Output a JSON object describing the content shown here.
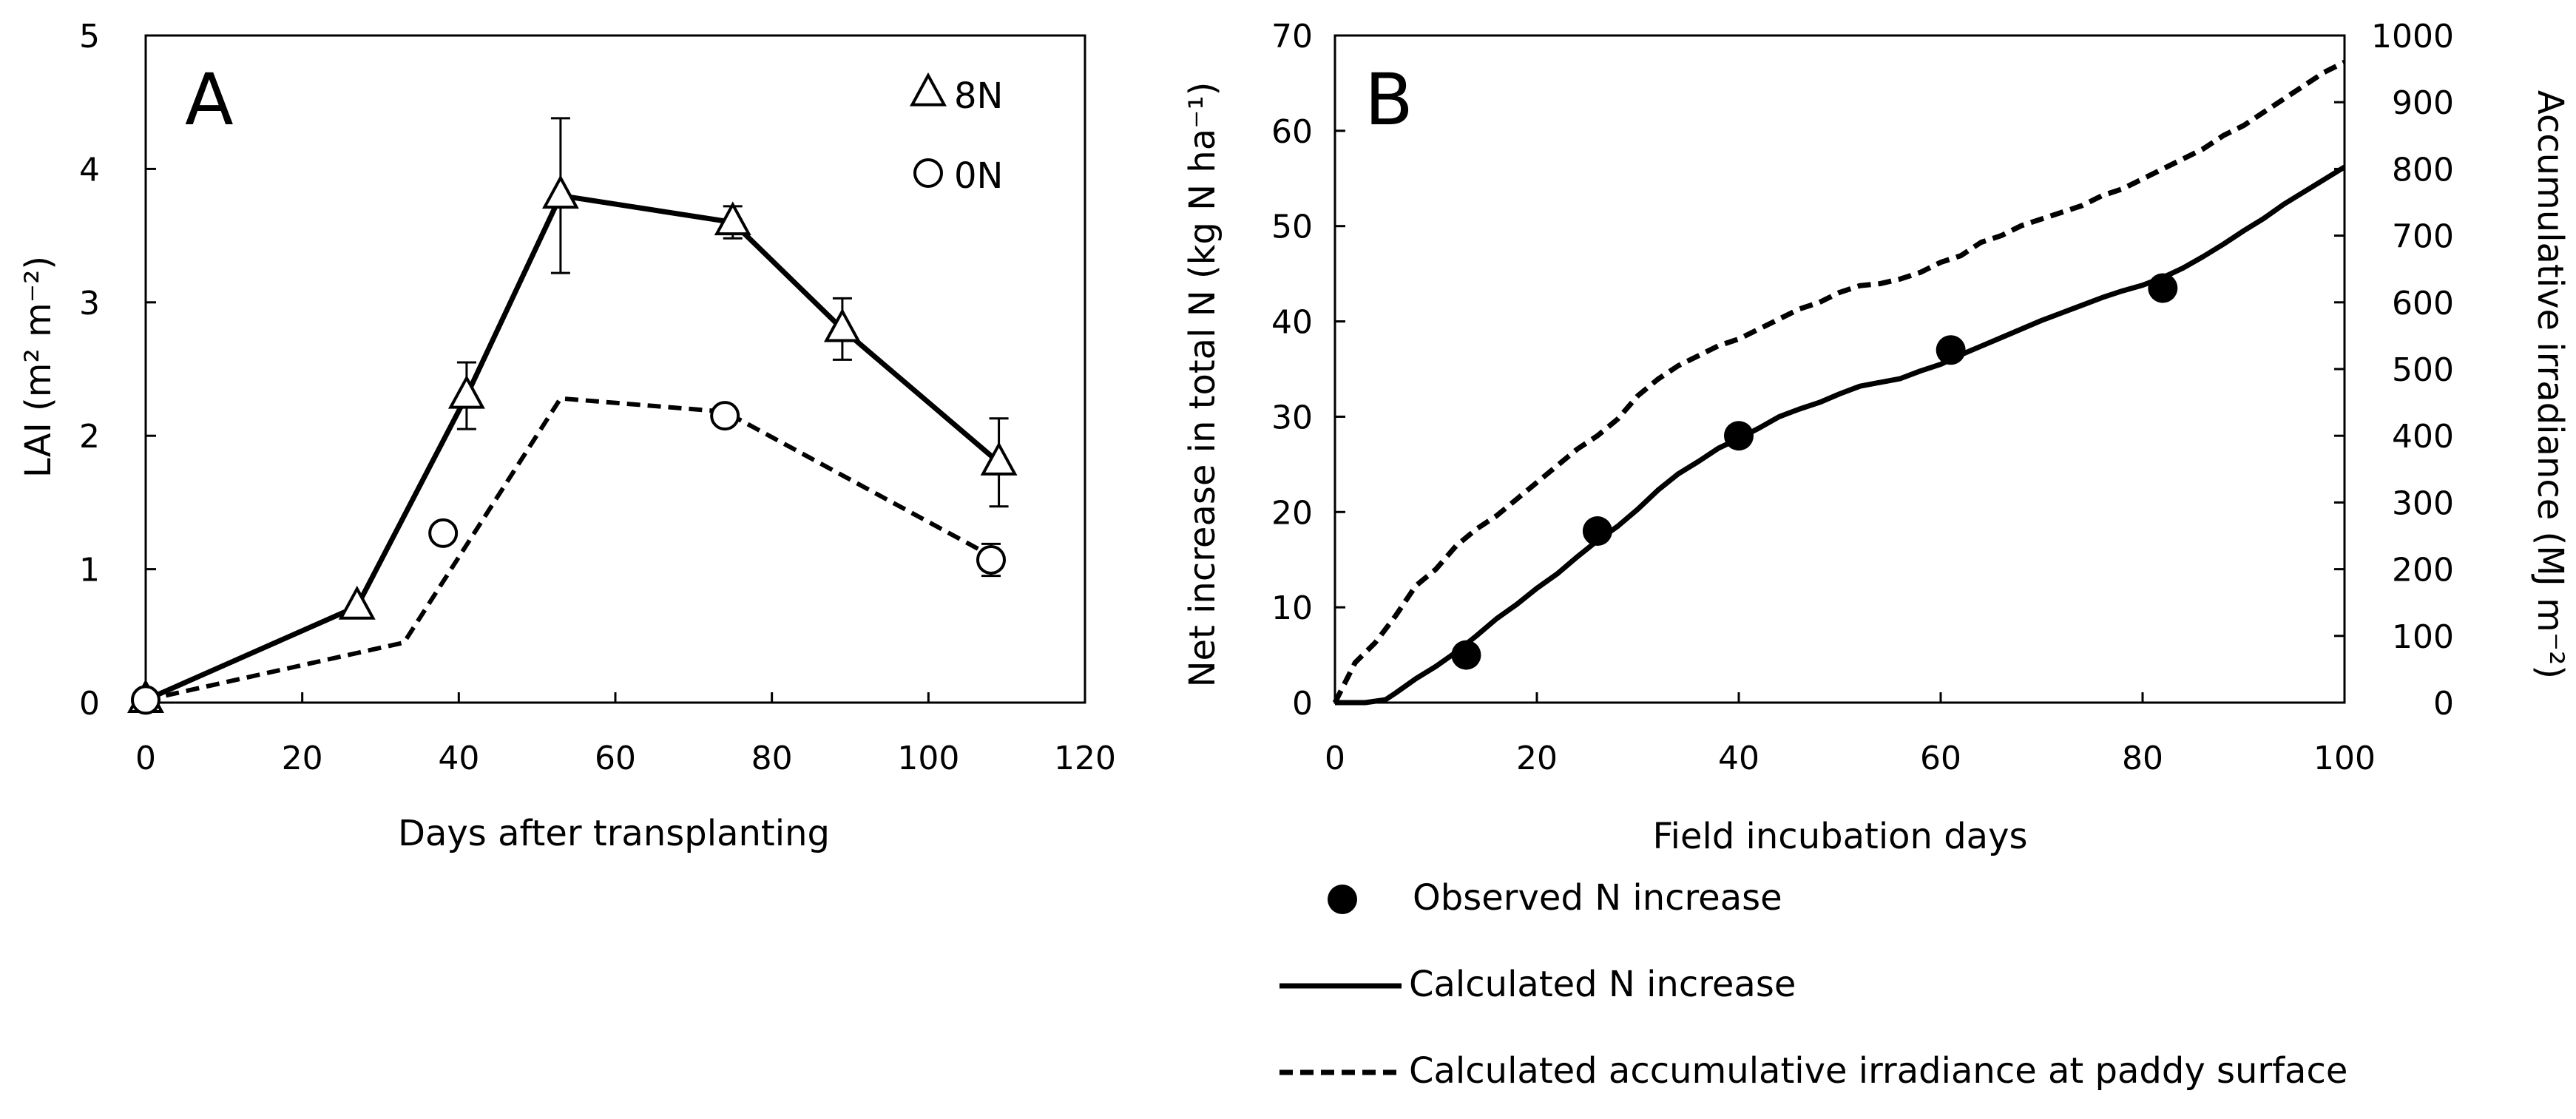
{
  "chart_data": [
    {
      "type": "line",
      "panel_label": "A",
      "xlabel": "Days after transplanting",
      "ylabel": "LAI (m² m⁻²)",
      "xlim": [
        0,
        120
      ],
      "ylim": [
        0,
        5
      ],
      "xticks": [
        0,
        20,
        40,
        60,
        80,
        100,
        120
      ],
      "yticks": [
        0,
        1,
        2,
        3,
        4,
        5
      ],
      "grid": false,
      "legend_position": "top-right",
      "series": [
        {
          "name": "8N",
          "marker": "triangle",
          "line": "solid",
          "points": [
            {
              "x": 0,
              "y": 0.02
            },
            {
              "x": 27,
              "y": 0.72
            },
            {
              "x": 41,
              "y": 2.3,
              "err": 0.25
            },
            {
              "x": 53,
              "y": 3.8,
              "err": 0.58
            },
            {
              "x": 75,
              "y": 3.6,
              "err": 0.12
            },
            {
              "x": 89,
              "y": 2.8,
              "err": 0.23
            },
            {
              "x": 109,
              "y": 1.8,
              "err": 0.33
            }
          ]
        },
        {
          "name": "0N",
          "marker": "circle",
          "line": "dashed",
          "points": [
            {
              "x": 0,
              "y": 0.02
            },
            {
              "x": 38,
              "y": 1.27
            },
            {
              "x": 74,
              "y": 2.15
            },
            {
              "x": 108,
              "y": 1.07,
              "err": 0.12
            }
          ],
          "line_points": [
            [
              0,
              0.02
            ],
            [
              33,
              0.45
            ],
            [
              53,
              2.28
            ],
            [
              74,
              2.18
            ],
            [
              108,
              1.1
            ]
          ]
        }
      ]
    },
    {
      "type": "line",
      "panel_label": "B",
      "xlabel": "Field incubation days",
      "ylabel": "Net increase in total N (kg N ha⁻¹)",
      "y2label": "Accumulative irradiance (MJ m⁻²)",
      "xlim": [
        0,
        100
      ],
      "ylim": [
        0,
        70
      ],
      "y2lim": [
        0,
        1000
      ],
      "xticks": [
        0,
        20,
        40,
        60,
        80,
        100
      ],
      "yticks": [
        0,
        10,
        20,
        30,
        40,
        50,
        60,
        70
      ],
      "y2ticks": [
        0,
        100,
        200,
        300,
        400,
        500,
        600,
        700,
        800,
        900,
        1000
      ],
      "grid": false,
      "legend_position": "bottom",
      "series": [
        {
          "name": "Observed N increase",
          "kind": "scatter",
          "axis": "left",
          "x": [
            13,
            26,
            40,
            61,
            82
          ],
          "y": [
            5,
            18,
            28,
            37,
            43.5
          ]
        },
        {
          "name": "Calculated N increase",
          "kind": "line",
          "line": "solid",
          "axis": "left",
          "x": [
            0,
            3,
            5,
            6,
            8,
            10,
            12,
            14,
            16,
            18,
            20,
            22,
            24,
            26,
            28,
            30,
            32,
            34,
            36,
            38,
            40,
            42,
            44,
            46,
            48,
            50,
            52,
            54,
            56,
            58,
            60,
            62,
            64,
            66,
            68,
            70,
            72,
            74,
            76,
            78,
            80,
            82,
            84,
            86,
            88,
            90,
            92,
            94,
            96,
            98,
            100
          ],
          "y": [
            0,
            0,
            0.3,
            1.0,
            2.5,
            3.8,
            5.3,
            7.0,
            8.8,
            10.3,
            12.0,
            13.5,
            15.3,
            17.0,
            18.5,
            20.3,
            22.3,
            24.0,
            25.3,
            26.7,
            27.7,
            28.8,
            30.0,
            30.8,
            31.5,
            32.4,
            33.2,
            33.6,
            34.0,
            34.8,
            35.5,
            36.5,
            37.4,
            38.3,
            39.2,
            40.1,
            40.9,
            41.7,
            42.5,
            43.2,
            43.8,
            44.6,
            45.6,
            46.8,
            48.1,
            49.5,
            50.8,
            52.3,
            53.6,
            54.9,
            56.2
          ]
        },
        {
          "name": "Calculated accumulative irradiance at paddy surface",
          "kind": "line",
          "line": "dashed",
          "axis": "right",
          "x": [
            0,
            2,
            4,
            6,
            8,
            10,
            12,
            14,
            16,
            18,
            20,
            22,
            24,
            26,
            28,
            30,
            32,
            34,
            36,
            38,
            40,
            42,
            44,
            46,
            48,
            50,
            52,
            54,
            56,
            58,
            60,
            62,
            64,
            66,
            68,
            70,
            72,
            74,
            76,
            78,
            80,
            82,
            84,
            86,
            88,
            90,
            92,
            94,
            96,
            98,
            100
          ],
          "y": [
            0,
            60,
            90,
            130,
            175,
            200,
            235,
            260,
            280,
            305,
            330,
            355,
            380,
            400,
            425,
            460,
            485,
            505,
            520,
            535,
            545,
            560,
            575,
            590,
            600,
            615,
            625,
            628,
            635,
            645,
            660,
            670,
            690,
            700,
            715,
            725,
            735,
            745,
            760,
            770,
            785,
            800,
            815,
            830,
            850,
            865,
            885,
            905,
            925,
            945,
            960
          ]
        }
      ]
    }
  ]
}
